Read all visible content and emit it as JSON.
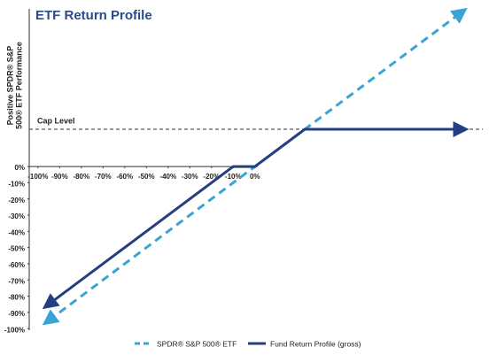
{
  "chart_data": {
    "type": "line",
    "title": "ETF Return Profile",
    "ylabel": [
      "Positive SPDR® S&P",
      "500® ETF Performance"
    ],
    "xlim": [
      -104,
      105
    ],
    "ylim": [
      -101,
      100
    ],
    "xticks": [
      {
        "value": -100,
        "label": "-100%"
      },
      {
        "value": -90,
        "label": "-90%"
      },
      {
        "value": -80,
        "label": "-80%"
      },
      {
        "value": -70,
        "label": "-70%"
      },
      {
        "value": -60,
        "label": "-60%"
      },
      {
        "value": -50,
        "label": "-50%"
      },
      {
        "value": -40,
        "label": "-40%"
      },
      {
        "value": -30,
        "label": "-30%"
      },
      {
        "value": -20,
        "label": "-20%"
      },
      {
        "value": -10,
        "label": "-10%"
      },
      {
        "value": 0,
        "label": "0%"
      }
    ],
    "yticks": [
      {
        "value": 0,
        "label": "0%"
      },
      {
        "value": -10,
        "label": "-10%"
      },
      {
        "value": -20,
        "label": "-20%"
      },
      {
        "value": -30,
        "label": "-30%"
      },
      {
        "value": -40,
        "label": "-40%"
      },
      {
        "value": -50,
        "label": "-50%"
      },
      {
        "value": -60,
        "label": "-60%"
      },
      {
        "value": -70,
        "label": "-70%"
      },
      {
        "value": -80,
        "label": "-80%"
      },
      {
        "value": -90,
        "label": "-90%"
      },
      {
        "value": -100,
        "label": "-100%"
      }
    ],
    "cap_level": {
      "label": "Cap Level",
      "value": 23
    },
    "series": [
      {
        "name": "SPDR® S&P 500® ETF",
        "color": "#3aa3d6",
        "dashed": true,
        "x": [
          -95,
          95
        ],
        "values": [
          -95,
          95
        ]
      },
      {
        "name": "Fund Return Profile (gross)",
        "color": "#243f80",
        "dashed": false,
        "x": [
          -95,
          -10,
          0,
          23,
          95
        ],
        "values": [
          -85,
          0,
          0,
          23,
          23
        ]
      }
    ]
  }
}
